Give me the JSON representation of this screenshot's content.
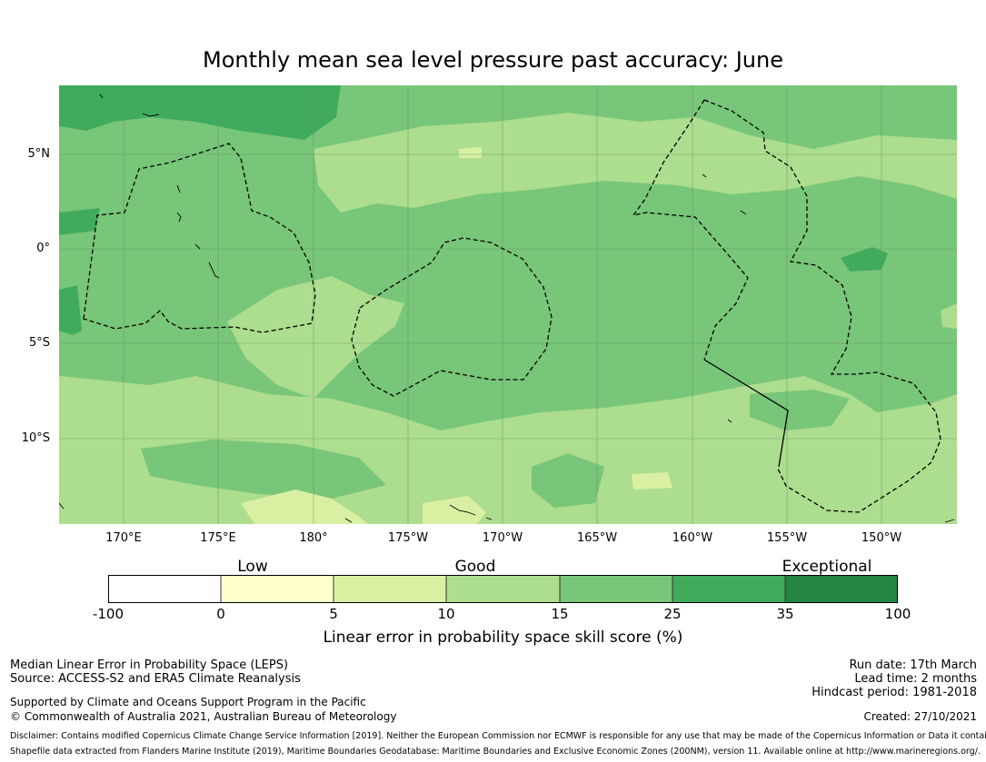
{
  "title": "Monthly mean sea level pressure past accuracy: June",
  "map": {
    "lat_labels": [
      "5°N",
      "0°",
      "5°S",
      "10°S"
    ],
    "lon_labels": [
      "170°E",
      "175°E",
      "180°",
      "175°W",
      "170°W",
      "165°W",
      "160°W",
      "155°W",
      "150°W"
    ],
    "colors": {
      "c_neg": "#ffffff",
      "c0_5": "#ffffcc",
      "c5_10": "#d9f0a3",
      "c10_15": "#addd8e",
      "c15_25": "#78c679",
      "c25_35": "#41ab5d",
      "c35_100": "#238443"
    }
  },
  "legend": {
    "categories": [
      "Low",
      "Good",
      "Exceptional"
    ],
    "ticks": [
      "-100",
      "0",
      "5",
      "10",
      "15",
      "25",
      "35",
      "100"
    ],
    "label": "Linear error in probability space skill score (%)"
  },
  "footer": {
    "left_line1": "Median Linear Error in Probability Space (LEPS)",
    "left_line2": "Source: ACCESS-S2 and ERA5 Climate Reanalysis",
    "support_line1": "Supported by Climate and Oceans Support Program in the Pacific",
    "support_line2": "© Commonwealth of Australia 2021, Australian Bureau of Meteorology",
    "run_date": "Run date: 17th March",
    "lead_time": "Lead time: 2 months",
    "hindcast": "Hindcast period: 1981-2018",
    "created": "Created: 27/10/2021",
    "disclaimer": "Disclaimer: Contains modified Copernicus Climate Change Service Information [2019]. Neither the European Commission nor ECMWF is responsible for any use that may be made of the Copernicus Information or Data it contains.",
    "shapefile": "Shapefile data extracted from Flanders Marine Institute (2019), Maritime Boundaries Geodatabase: Maritime Boundaries and Exclusive Economic Zones (200NM), version 11. Available online at http://www.marineregions.org/."
  }
}
